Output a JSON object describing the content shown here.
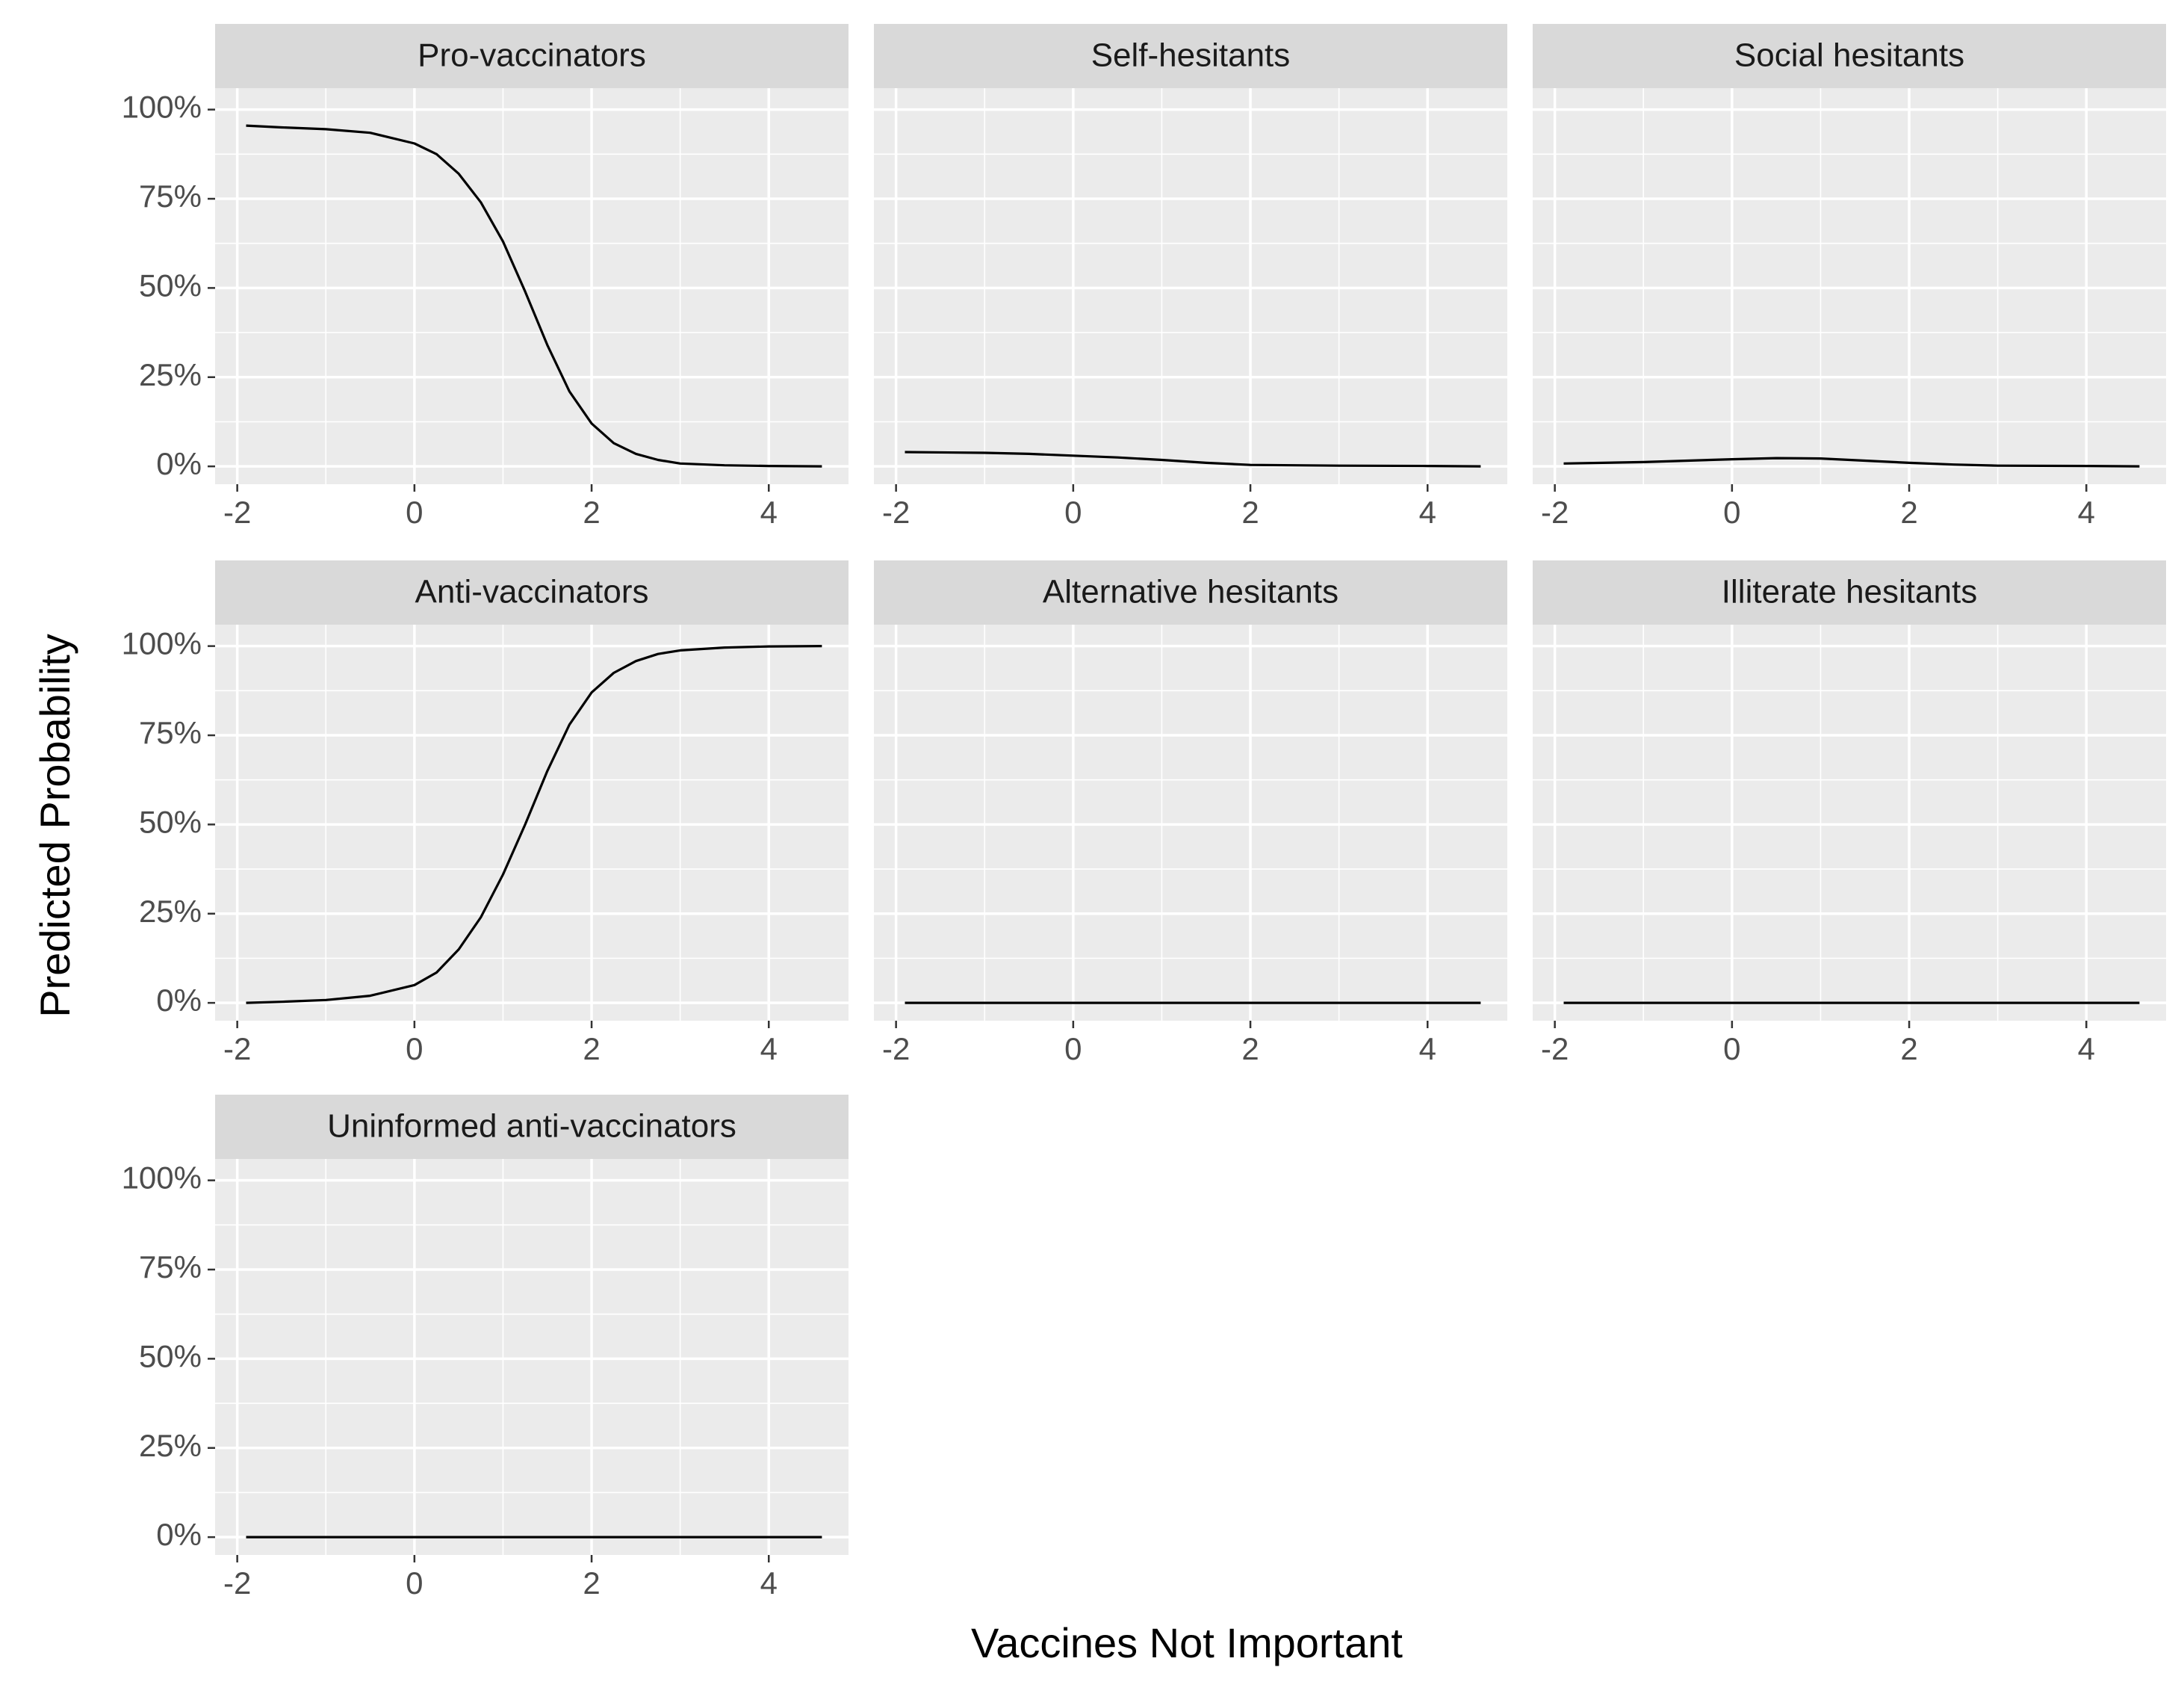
{
  "chart_data": {
    "type": "line",
    "xlabel": "Vaccines Not Important",
    "ylabel": "Predicted Probability",
    "xlim": [
      -2.25,
      4.9
    ],
    "ylim": [
      -0.05,
      1.06
    ],
    "x_ticks": [
      -2,
      0,
      2,
      4
    ],
    "x_tick_labels": [
      "-2",
      "0",
      "2",
      "4"
    ],
    "y_ticks": [
      0,
      0.25,
      0.5,
      0.75,
      1.0
    ],
    "y_tick_labels": [
      "0%",
      "25%",
      "50%",
      "75%",
      "100%"
    ],
    "grid": true,
    "facet_layout": "3 columns, 3 rows",
    "panels": [
      {
        "name": "Pro-vaccinators",
        "x": [
          -1.9,
          -1.5,
          -1.0,
          -0.5,
          0.0,
          0.25,
          0.5,
          0.75,
          1.0,
          1.25,
          1.5,
          1.75,
          2.0,
          2.25,
          2.5,
          2.75,
          3.0,
          3.5,
          4.0,
          4.6
        ],
        "values": [
          0.955,
          0.95,
          0.945,
          0.935,
          0.905,
          0.875,
          0.82,
          0.74,
          0.63,
          0.49,
          0.34,
          0.21,
          0.12,
          0.065,
          0.035,
          0.018,
          0.008,
          0.003,
          0.001,
          0.0
        ]
      },
      {
        "name": "Self-hesitants",
        "x": [
          -1.9,
          -1.0,
          -0.5,
          0.0,
          0.5,
          1.0,
          1.5,
          2.0,
          3.0,
          4.0,
          4.6
        ],
        "values": [
          0.04,
          0.038,
          0.035,
          0.03,
          0.025,
          0.018,
          0.01,
          0.004,
          0.002,
          0.001,
          0.0
        ]
      },
      {
        "name": "Social hesitants",
        "x": [
          -1.9,
          -1.0,
          -0.5,
          0.0,
          0.5,
          1.0,
          1.5,
          2.0,
          2.5,
          3.0,
          4.0,
          4.6
        ],
        "values": [
          0.008,
          0.012,
          0.016,
          0.02,
          0.023,
          0.022,
          0.016,
          0.01,
          0.005,
          0.002,
          0.001,
          0.0
        ]
      },
      {
        "name": "Anti-vaccinators",
        "x": [
          -1.9,
          -1.5,
          -1.0,
          -0.5,
          0.0,
          0.25,
          0.5,
          0.75,
          1.0,
          1.25,
          1.5,
          1.75,
          2.0,
          2.25,
          2.5,
          2.75,
          3.0,
          3.5,
          4.0,
          4.6
        ],
        "values": [
          0.0,
          0.003,
          0.008,
          0.02,
          0.05,
          0.085,
          0.15,
          0.24,
          0.36,
          0.5,
          0.65,
          0.78,
          0.87,
          0.925,
          0.958,
          0.978,
          0.988,
          0.996,
          0.999,
          1.0
        ]
      },
      {
        "name": "Alternative hesitants",
        "x": [
          -1.9,
          4.6
        ],
        "values": [
          0.0,
          0.0
        ]
      },
      {
        "name": "Illiterate hesitants",
        "x": [
          -1.9,
          4.6
        ],
        "values": [
          0.0,
          0.0
        ]
      },
      {
        "name": "Uninformed anti-vaccinators",
        "x": [
          -1.9,
          4.6
        ],
        "values": [
          0.0,
          0.0
        ]
      }
    ],
    "colors": {
      "panel_background": "#ebebeb",
      "strip_background": "#d9d9d9",
      "grid_line": "#ffffff",
      "line": "#000000",
      "tick_mark": "#333333",
      "tick_label": "#4d4d4d"
    }
  }
}
